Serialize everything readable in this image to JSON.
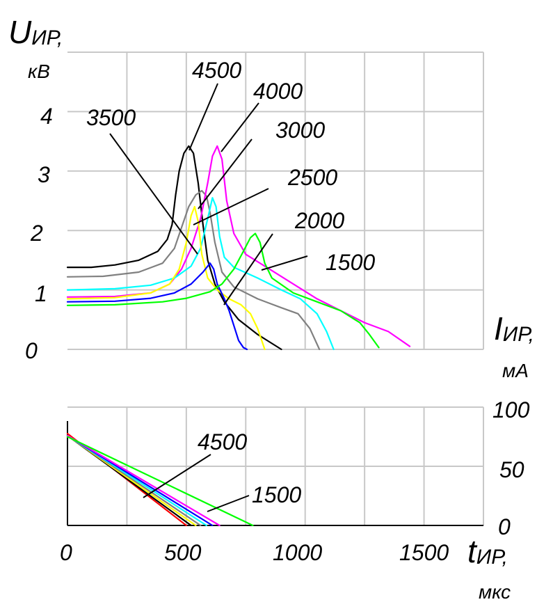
{
  "chart_data": [
    {
      "type": "line",
      "title": "",
      "ylabel_main": "U",
      "ylabel_sub": "ИР,",
      "yunit": "кВ",
      "xlim": [
        0,
        1750
      ],
      "ylim": [
        0,
        5
      ],
      "yticks": [
        "0",
        "1",
        "2",
        "3",
        "4"
      ],
      "grid": true,
      "series": [
        {
          "name": "4500",
          "color": "#000000",
          "points": [
            [
              0,
              1.38
            ],
            [
              100,
              1.38
            ],
            [
              200,
              1.42
            ],
            [
              300,
              1.5
            ],
            [
              380,
              1.65
            ],
            [
              420,
              1.85
            ],
            [
              440,
              2.1
            ],
            [
              455,
              2.6
            ],
            [
              470,
              3.0
            ],
            [
              490,
              3.3
            ],
            [
              510,
              3.42
            ],
            [
              530,
              3.3
            ],
            [
              550,
              2.8
            ],
            [
              570,
              2.1
            ],
            [
              590,
              1.5
            ],
            [
              620,
              1.1
            ],
            [
              660,
              0.8
            ],
            [
              720,
              0.5
            ],
            [
              800,
              0.25
            ],
            [
              900,
              0.0
            ]
          ]
        },
        {
          "name": "3500",
          "color": "#808080",
          "points": [
            [
              0,
              1.22
            ],
            [
              150,
              1.23
            ],
            [
              300,
              1.3
            ],
            [
              400,
              1.45
            ],
            [
              450,
              1.7
            ],
            [
              480,
              2.05
            ],
            [
              510,
              2.4
            ],
            [
              540,
              2.6
            ],
            [
              565,
              2.67
            ],
            [
              585,
              2.58
            ],
            [
              600,
              2.3
            ],
            [
              620,
              1.8
            ],
            [
              650,
              1.3
            ],
            [
              700,
              1.05
            ],
            [
              800,
              0.85
            ],
            [
              900,
              0.7
            ],
            [
              970,
              0.6
            ],
            [
              1020,
              0.35
            ],
            [
              1060,
              0.0
            ]
          ]
        },
        {
          "name": "4000",
          "color": "#ff00ff",
          "points": [
            [
              0,
              0.88
            ],
            [
              200,
              0.89
            ],
            [
              350,
              0.95
            ],
            [
              430,
              1.1
            ],
            [
              480,
              1.35
            ],
            [
              520,
              1.7
            ],
            [
              560,
              2.2
            ],
            [
              590,
              2.8
            ],
            [
              610,
              3.25
            ],
            [
              630,
              3.42
            ],
            [
              650,
              3.2
            ],
            [
              670,
              2.5
            ],
            [
              700,
              1.95
            ],
            [
              750,
              1.6
            ],
            [
              850,
              1.35
            ],
            [
              950,
              1.1
            ],
            [
              1050,
              0.85
            ],
            [
              1150,
              0.65
            ],
            [
              1250,
              0.45
            ],
            [
              1350,
              0.3
            ],
            [
              1440,
              0.05
            ]
          ]
        },
        {
          "name": "3000",
          "color": "#00ffff",
          "points": [
            [
              0,
              1.0
            ],
            [
              200,
              1.02
            ],
            [
              350,
              1.08
            ],
            [
              450,
              1.2
            ],
            [
              520,
              1.4
            ],
            [
              560,
              1.7
            ],
            [
              590,
              2.2
            ],
            [
              610,
              2.55
            ],
            [
              625,
              2.4
            ],
            [
              640,
              1.9
            ],
            [
              660,
              1.55
            ],
            [
              700,
              1.38
            ],
            [
              800,
              1.2
            ],
            [
              900,
              1.0
            ],
            [
              980,
              0.85
            ],
            [
              1050,
              0.6
            ],
            [
              1090,
              0.3
            ],
            [
              1120,
              0.0
            ]
          ]
        },
        {
          "name": "2500",
          "color": "#ffff00",
          "points": [
            [
              0,
              0.85
            ],
            [
              200,
              0.87
            ],
            [
              350,
              0.95
            ],
            [
              430,
              1.1
            ],
            [
              470,
              1.35
            ],
            [
              500,
              1.8
            ],
            [
              520,
              2.25
            ],
            [
              535,
              2.4
            ],
            [
              550,
              2.15
            ],
            [
              565,
              1.6
            ],
            [
              590,
              1.2
            ],
            [
              630,
              1.0
            ],
            [
              680,
              0.85
            ],
            [
              730,
              0.75
            ],
            [
              770,
              0.6
            ],
            [
              800,
              0.35
            ],
            [
              830,
              0.0
            ]
          ]
        },
        {
          "name": "2000",
          "color": "#0000ff",
          "points": [
            [
              0,
              0.8
            ],
            [
              200,
              0.81
            ],
            [
              350,
              0.86
            ],
            [
              450,
              0.95
            ],
            [
              520,
              1.1
            ],
            [
              570,
              1.3
            ],
            [
              600,
              1.45
            ],
            [
              615,
              1.35
            ],
            [
              630,
              1.1
            ],
            [
              660,
              0.85
            ],
            [
              680,
              0.65
            ],
            [
              700,
              0.4
            ],
            [
              720,
              0.15
            ],
            [
              740,
              0.03
            ],
            [
              755,
              0.0
            ]
          ]
        },
        {
          "name": "1500",
          "color": "#00ff00",
          "points": [
            [
              0,
              0.74
            ],
            [
              200,
              0.75
            ],
            [
              400,
              0.8
            ],
            [
              500,
              0.86
            ],
            [
              600,
              0.97
            ],
            [
              650,
              1.1
            ],
            [
              700,
              1.35
            ],
            [
              740,
              1.65
            ],
            [
              770,
              1.88
            ],
            [
              790,
              1.95
            ],
            [
              810,
              1.8
            ],
            [
              830,
              1.45
            ],
            [
              860,
              1.2
            ],
            [
              950,
              0.95
            ],
            [
              1050,
              0.8
            ],
            [
              1150,
              0.65
            ],
            [
              1230,
              0.45
            ],
            [
              1270,
              0.25
            ],
            [
              1310,
              0.03
            ]
          ]
        }
      ],
      "labels": [
        "4500",
        "4000",
        "3500",
        "3000",
        "2500",
        "2000",
        "1500"
      ]
    },
    {
      "type": "line",
      "title": "",
      "ylabel_main": "I",
      "ylabel_sub": "ИР,",
      "yunit": "мА",
      "xlabel_main": "t",
      "xlabel_sub": "ИР,",
      "xunit": "мкс",
      "xlim": [
        0,
        1750
      ],
      "ylim": [
        0,
        100
      ],
      "xticks": [
        "0",
        "500",
        "1000",
        "1500"
      ],
      "yticks": [
        "0",
        "50",
        "100"
      ],
      "grid": true,
      "series": [
        {
          "name": "4500",
          "color": "#ff0000",
          "points": [
            [
              0,
              88
            ],
            [
              500,
              0
            ]
          ]
        },
        {
          "name": "",
          "color": "#000000",
          "points": [
            [
              0,
              86
            ],
            [
              520,
              0
            ]
          ]
        },
        {
          "name": "",
          "color": "#ffff00",
          "points": [
            [
              0,
              86
            ],
            [
              540,
              0
            ]
          ]
        },
        {
          "name": "",
          "color": "#808080",
          "points": [
            [
              0,
              86
            ],
            [
              560,
              0
            ]
          ]
        },
        {
          "name": "",
          "color": "#00ffff",
          "points": [
            [
              0,
              86
            ],
            [
              585,
              0
            ]
          ]
        },
        {
          "name": "",
          "color": "#0000ff",
          "points": [
            [
              0,
              86
            ],
            [
              610,
              0
            ]
          ]
        },
        {
          "name": "",
          "color": "#ff00ff",
          "points": [
            [
              0,
              86
            ],
            [
              640,
              0
            ]
          ]
        },
        {
          "name": "1500",
          "color": "#00ff00",
          "points": [
            [
              0,
              85
            ],
            [
              780,
              0
            ]
          ]
        }
      ],
      "labels": [
        "4500",
        "1500"
      ]
    }
  ]
}
